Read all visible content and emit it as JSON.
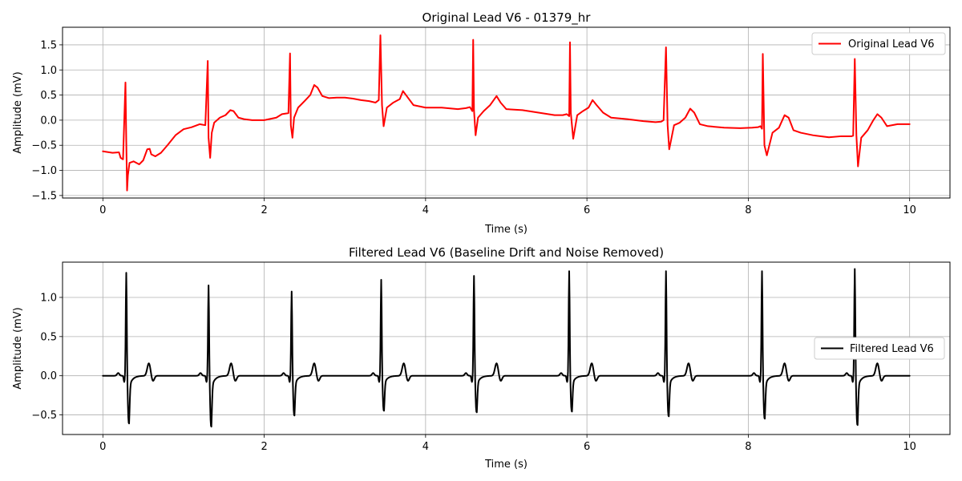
{
  "chart_data": [
    {
      "type": "line",
      "title": "Original Lead V6 - 01379_hr",
      "xlabel": "Time (s)",
      "ylabel": "Amplitude (mV)",
      "xlim": [
        -0.5,
        10.5
      ],
      "ylim": [
        -1.55,
        1.85
      ],
      "xticks": [
        0,
        2,
        4,
        6,
        8,
        10
      ],
      "yticks": [
        -1.5,
        -1.0,
        -0.5,
        0.0,
        0.5,
        1.0,
        1.5
      ],
      "xtick_labels": [
        "0",
        "2",
        "4",
        "6",
        "8",
        "10"
      ],
      "ytick_labels": [
        "−1.5",
        "−1.0",
        "−0.5",
        "0.0",
        "0.5",
        "1.0",
        "1.5"
      ],
      "grid": true,
      "legend_position": "top-right",
      "series": [
        {
          "name": "Original Lead V6",
          "color": "#ff0000",
          "x": [
            0.0,
            0.12,
            0.2,
            0.22,
            0.25,
            0.28,
            0.29,
            0.3,
            0.31,
            0.33,
            0.38,
            0.45,
            0.5,
            0.55,
            0.58,
            0.6,
            0.65,
            0.72,
            0.8,
            0.9,
            1.0,
            1.1,
            1.2,
            1.27,
            1.3,
            1.31,
            1.33,
            1.35,
            1.38,
            1.45,
            1.52,
            1.58,
            1.62,
            1.68,
            1.75,
            1.85,
            2.0,
            2.15,
            2.22,
            2.3,
            2.32,
            2.33,
            2.35,
            2.37,
            2.42,
            2.5,
            2.57,
            2.62,
            2.66,
            2.72,
            2.8,
            2.9,
            3.0,
            3.1,
            3.2,
            3.3,
            3.38,
            3.42,
            3.44,
            3.46,
            3.48,
            3.52,
            3.6,
            3.68,
            3.72,
            3.78,
            3.85,
            4.0,
            4.2,
            4.4,
            4.5,
            4.55,
            4.58,
            4.59,
            4.6,
            4.62,
            4.65,
            4.72,
            4.8,
            4.88,
            4.93,
            5.0,
            5.2,
            5.4,
            5.6,
            5.7,
            5.75,
            5.78,
            5.79,
            5.8,
            5.83,
            5.88,
            5.95,
            6.02,
            6.07,
            6.12,
            6.2,
            6.3,
            6.5,
            6.7,
            6.85,
            6.92,
            6.95,
            6.98,
            7.0,
            7.02,
            7.08,
            7.15,
            7.22,
            7.28,
            7.33,
            7.4,
            7.5,
            7.7,
            7.9,
            8.05,
            8.12,
            8.15,
            8.17,
            8.18,
            8.2,
            8.23,
            8.3,
            8.38,
            8.45,
            8.5,
            8.56,
            8.65,
            8.8,
            9.0,
            9.15,
            9.28,
            9.3,
            9.32,
            9.34,
            9.36,
            9.4,
            9.48,
            9.55,
            9.6,
            9.65,
            9.72,
            9.85,
            10.0
          ],
          "y": [
            -0.62,
            -0.65,
            -0.64,
            -0.75,
            -0.78,
            0.75,
            -0.4,
            -1.4,
            -1.1,
            -0.85,
            -0.82,
            -0.88,
            -0.8,
            -0.58,
            -0.57,
            -0.68,
            -0.72,
            -0.65,
            -0.5,
            -0.3,
            -0.18,
            -0.14,
            -0.08,
            -0.1,
            1.18,
            -0.35,
            -0.75,
            -0.25,
            -0.05,
            0.05,
            0.1,
            0.2,
            0.18,
            0.05,
            0.02,
            0.0,
            0.0,
            0.05,
            0.12,
            0.14,
            1.33,
            -0.1,
            -0.35,
            0.05,
            0.25,
            0.38,
            0.5,
            0.7,
            0.65,
            0.48,
            0.44,
            0.45,
            0.45,
            0.43,
            0.4,
            0.38,
            0.35,
            0.4,
            1.69,
            0.3,
            -0.12,
            0.25,
            0.35,
            0.42,
            0.58,
            0.45,
            0.3,
            0.25,
            0.25,
            0.22,
            0.24,
            0.26,
            0.18,
            1.6,
            0.2,
            -0.3,
            0.05,
            0.18,
            0.3,
            0.48,
            0.35,
            0.22,
            0.2,
            0.15,
            0.1,
            0.1,
            0.12,
            0.08,
            1.55,
            0.15,
            -0.37,
            0.1,
            0.18,
            0.25,
            0.4,
            0.3,
            0.15,
            0.05,
            0.02,
            -0.02,
            -0.04,
            -0.03,
            0.0,
            1.45,
            -0.1,
            -0.58,
            -0.1,
            -0.05,
            0.05,
            0.23,
            0.15,
            -0.08,
            -0.12,
            -0.15,
            -0.16,
            -0.15,
            -0.14,
            -0.12,
            -0.17,
            1.32,
            -0.5,
            -0.7,
            -0.25,
            -0.15,
            0.1,
            0.05,
            -0.2,
            -0.25,
            -0.3,
            -0.34,
            -0.32,
            -0.32,
            -0.31,
            1.22,
            -0.3,
            -0.92,
            -0.35,
            -0.2,
            0.0,
            0.12,
            0.05,
            -0.12,
            -0.08,
            -0.08
          ]
        }
      ]
    },
    {
      "type": "line",
      "title": "Filtered Lead V6 (Baseline Drift and Noise Removed)",
      "xlabel": "Time (s)",
      "ylabel": "Amplitude (mV)",
      "xlim": [
        -0.5,
        10.5
      ],
      "ylim": [
        -0.75,
        1.45
      ],
      "xticks": [
        0,
        2,
        4,
        6,
        8,
        10
      ],
      "yticks": [
        -0.5,
        0.0,
        0.5,
        1.0
      ],
      "xtick_labels": [
        "0",
        "2",
        "4",
        "6",
        "8",
        "10"
      ],
      "ytick_labels": [
        "−0.5",
        "0.0",
        "0.5",
        "1.0"
      ],
      "grid": true,
      "legend_position": "center-right",
      "beat_times": [
        0.29,
        1.31,
        2.34,
        3.45,
        4.6,
        5.78,
        6.98,
        8.17,
        9.32
      ],
      "beat_peaks": [
        1.32,
        1.16,
        1.08,
        1.23,
        1.28,
        1.34,
        1.34,
        1.34,
        1.37
      ],
      "beat_troughs": [
        -0.6,
        -0.64,
        -0.5,
        -0.44,
        -0.46,
        -0.45,
        -0.51,
        -0.54,
        -0.62
      ],
      "series": [
        {
          "name": "Filtered Lead V6",
          "color": "#000000"
        }
      ]
    }
  ]
}
